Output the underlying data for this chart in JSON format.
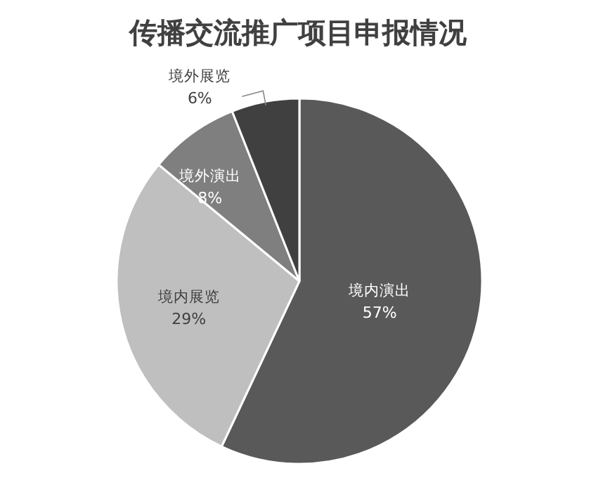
{
  "chart_data": {
    "type": "pie",
    "title": "传播交流推广项目申报情况",
    "categories": [
      "境内演出",
      "境内展览",
      "境外演出",
      "境外展览"
    ],
    "values": [
      57,
      29,
      8,
      6
    ],
    "colors": [
      "#595959",
      "#bfbfbf",
      "#7f7f7f",
      "#404040"
    ],
    "value_labels": [
      "57%",
      "29%",
      "8%",
      "6%"
    ],
    "legend": false
  }
}
